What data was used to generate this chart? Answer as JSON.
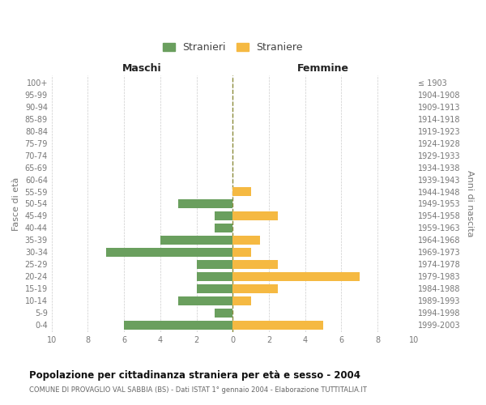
{
  "age_groups_bottom_to_top": [
    "0-4",
    "5-9",
    "10-14",
    "15-19",
    "20-24",
    "25-29",
    "30-34",
    "35-39",
    "40-44",
    "45-49",
    "50-54",
    "55-59",
    "60-64",
    "65-69",
    "70-74",
    "75-79",
    "80-84",
    "85-89",
    "90-94",
    "95-99",
    "100+"
  ],
  "birth_years_bottom_to_top": [
    "1999-2003",
    "1994-1998",
    "1989-1993",
    "1984-1988",
    "1979-1983",
    "1974-1978",
    "1969-1973",
    "1964-1968",
    "1959-1963",
    "1954-1958",
    "1949-1953",
    "1944-1948",
    "1939-1943",
    "1934-1938",
    "1929-1933",
    "1924-1928",
    "1919-1923",
    "1914-1918",
    "1909-1913",
    "1904-1908",
    "≤ 1903"
  ],
  "males_bottom_to_top": [
    6,
    1,
    3,
    2,
    2,
    2,
    7,
    4,
    1,
    1,
    3,
    0,
    0,
    0,
    0,
    0,
    0,
    0,
    0,
    0,
    0
  ],
  "females_bottom_to_top": [
    5,
    0,
    1,
    2.5,
    7,
    2.5,
    1,
    1.5,
    0,
    2.5,
    0,
    1,
    0,
    0,
    0,
    0,
    0,
    0,
    0,
    0,
    0
  ],
  "male_color": "#6a9f5e",
  "female_color": "#f5b942",
  "title": "Popolazione per cittadinanza straniera per età e sesso - 2004",
  "subtitle": "COMUNE DI PROVAGLIO VAL SABBIA (BS) - Dati ISTAT 1° gennaio 2004 - Elaborazione TUTTITALIA.IT",
  "ylabel_left": "Fasce di età",
  "ylabel_right": "Anni di nascita",
  "xlabel_left": "Maschi",
  "xlabel_right": "Femmine",
  "legend_male": "Stranieri",
  "legend_female": "Straniere",
  "xlim": 10,
  "bg_color": "#ffffff",
  "grid_color": "#cccccc",
  "text_color": "#777777",
  "title_color": "#111111",
  "dashed_line_color": "#8b8b3a"
}
